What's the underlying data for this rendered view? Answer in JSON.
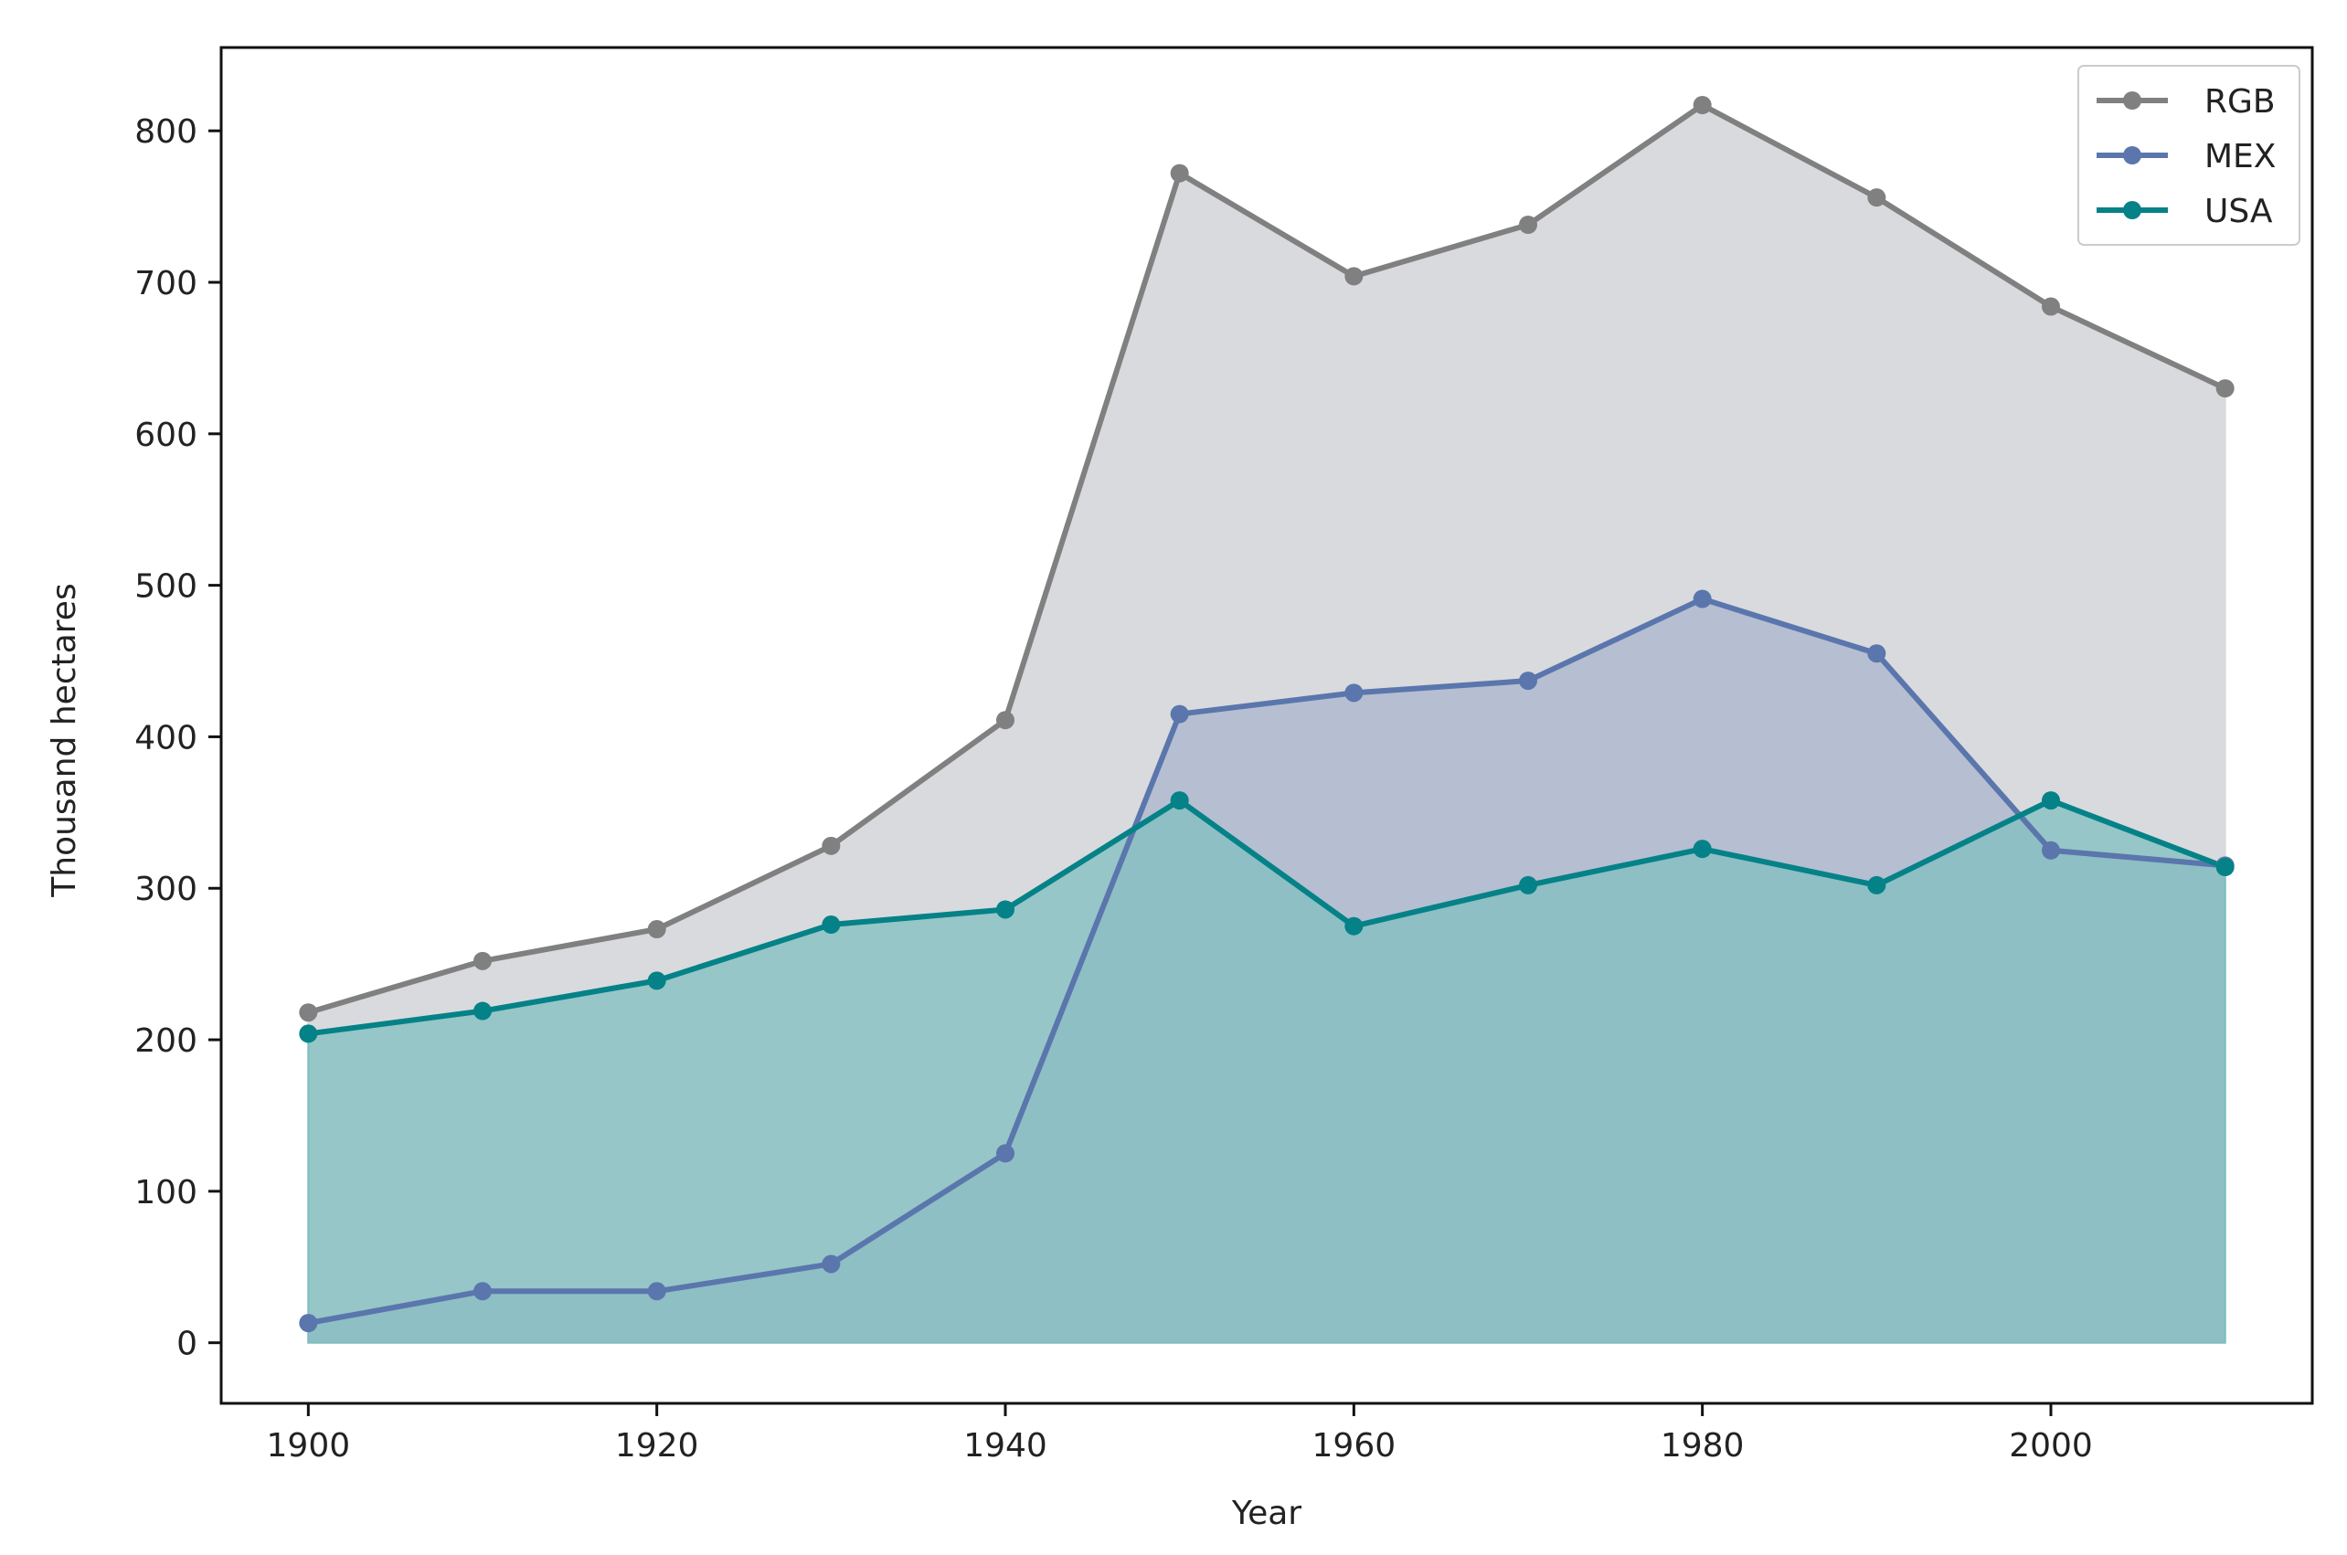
{
  "chart_data": {
    "type": "area",
    "xlabel": "Year",
    "ylabel": "Thousand hectares",
    "xlim": [
      1895,
      2015
    ],
    "ylim": [
      -40,
      855
    ],
    "xticks": [
      1900,
      1920,
      1940,
      1960,
      1980,
      2000
    ],
    "yticks": [
      0,
      100,
      200,
      300,
      400,
      500,
      600,
      700,
      800
    ],
    "grid": false,
    "legend_position": "top-right",
    "x": [
      1900,
      1910,
      1920,
      1930,
      1940,
      1950,
      1960,
      1970,
      1980,
      1990,
      2000,
      2010
    ],
    "series": [
      {
        "name": "RGB",
        "color": "#808080",
        "fill": "#d9dadd",
        "values": [
          218,
          252,
          273,
          328,
          411,
          772,
          704,
          738,
          817,
          756,
          684,
          630
        ]
      },
      {
        "name": "MEX",
        "color": "#5a76ad",
        "fill": "#a9b4cc",
        "values": [
          13,
          34,
          34,
          52,
          125,
          415,
          429,
          437,
          491,
          455,
          325,
          315
        ]
      },
      {
        "name": "USA",
        "color": "#048287",
        "fill": "#7fbfbf",
        "values": [
          204,
          219,
          239,
          276,
          286,
          358,
          275,
          302,
          326,
          302,
          358,
          314
        ]
      }
    ]
  }
}
